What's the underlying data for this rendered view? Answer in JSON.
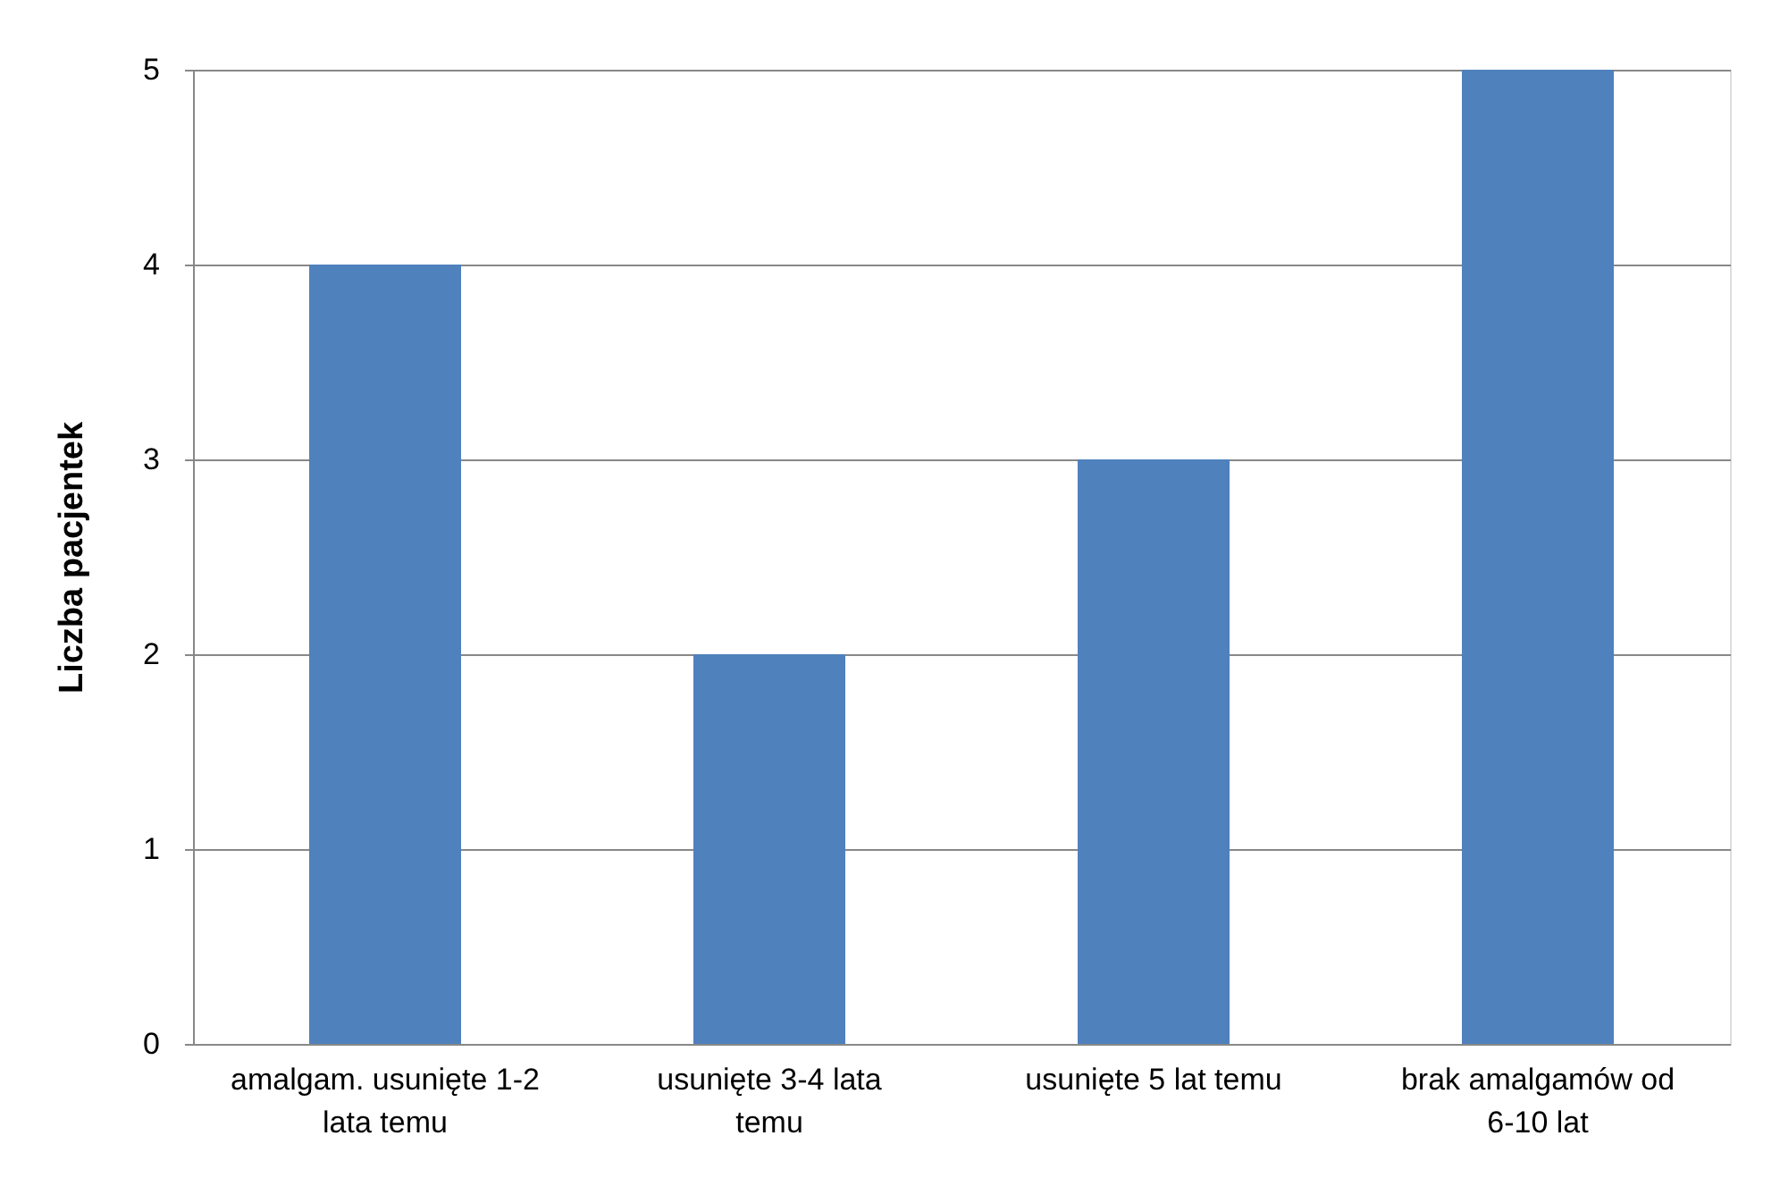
{
  "chart_data": {
    "type": "bar",
    "ylabel": "Liczba pacjentek",
    "categories": [
      "amalgam. usunięte 1-2 lata temu",
      "usunięte 3-4 lata temu",
      "usunięte 5 lat temu",
      "brak amalgamów od 6-10 lat"
    ],
    "values": [
      4,
      2,
      3,
      5
    ],
    "color": "#4f81bd",
    "ylim": [
      0,
      5
    ],
    "yticks": [
      0,
      1,
      2,
      3,
      4,
      5
    ],
    "grid": "y"
  }
}
